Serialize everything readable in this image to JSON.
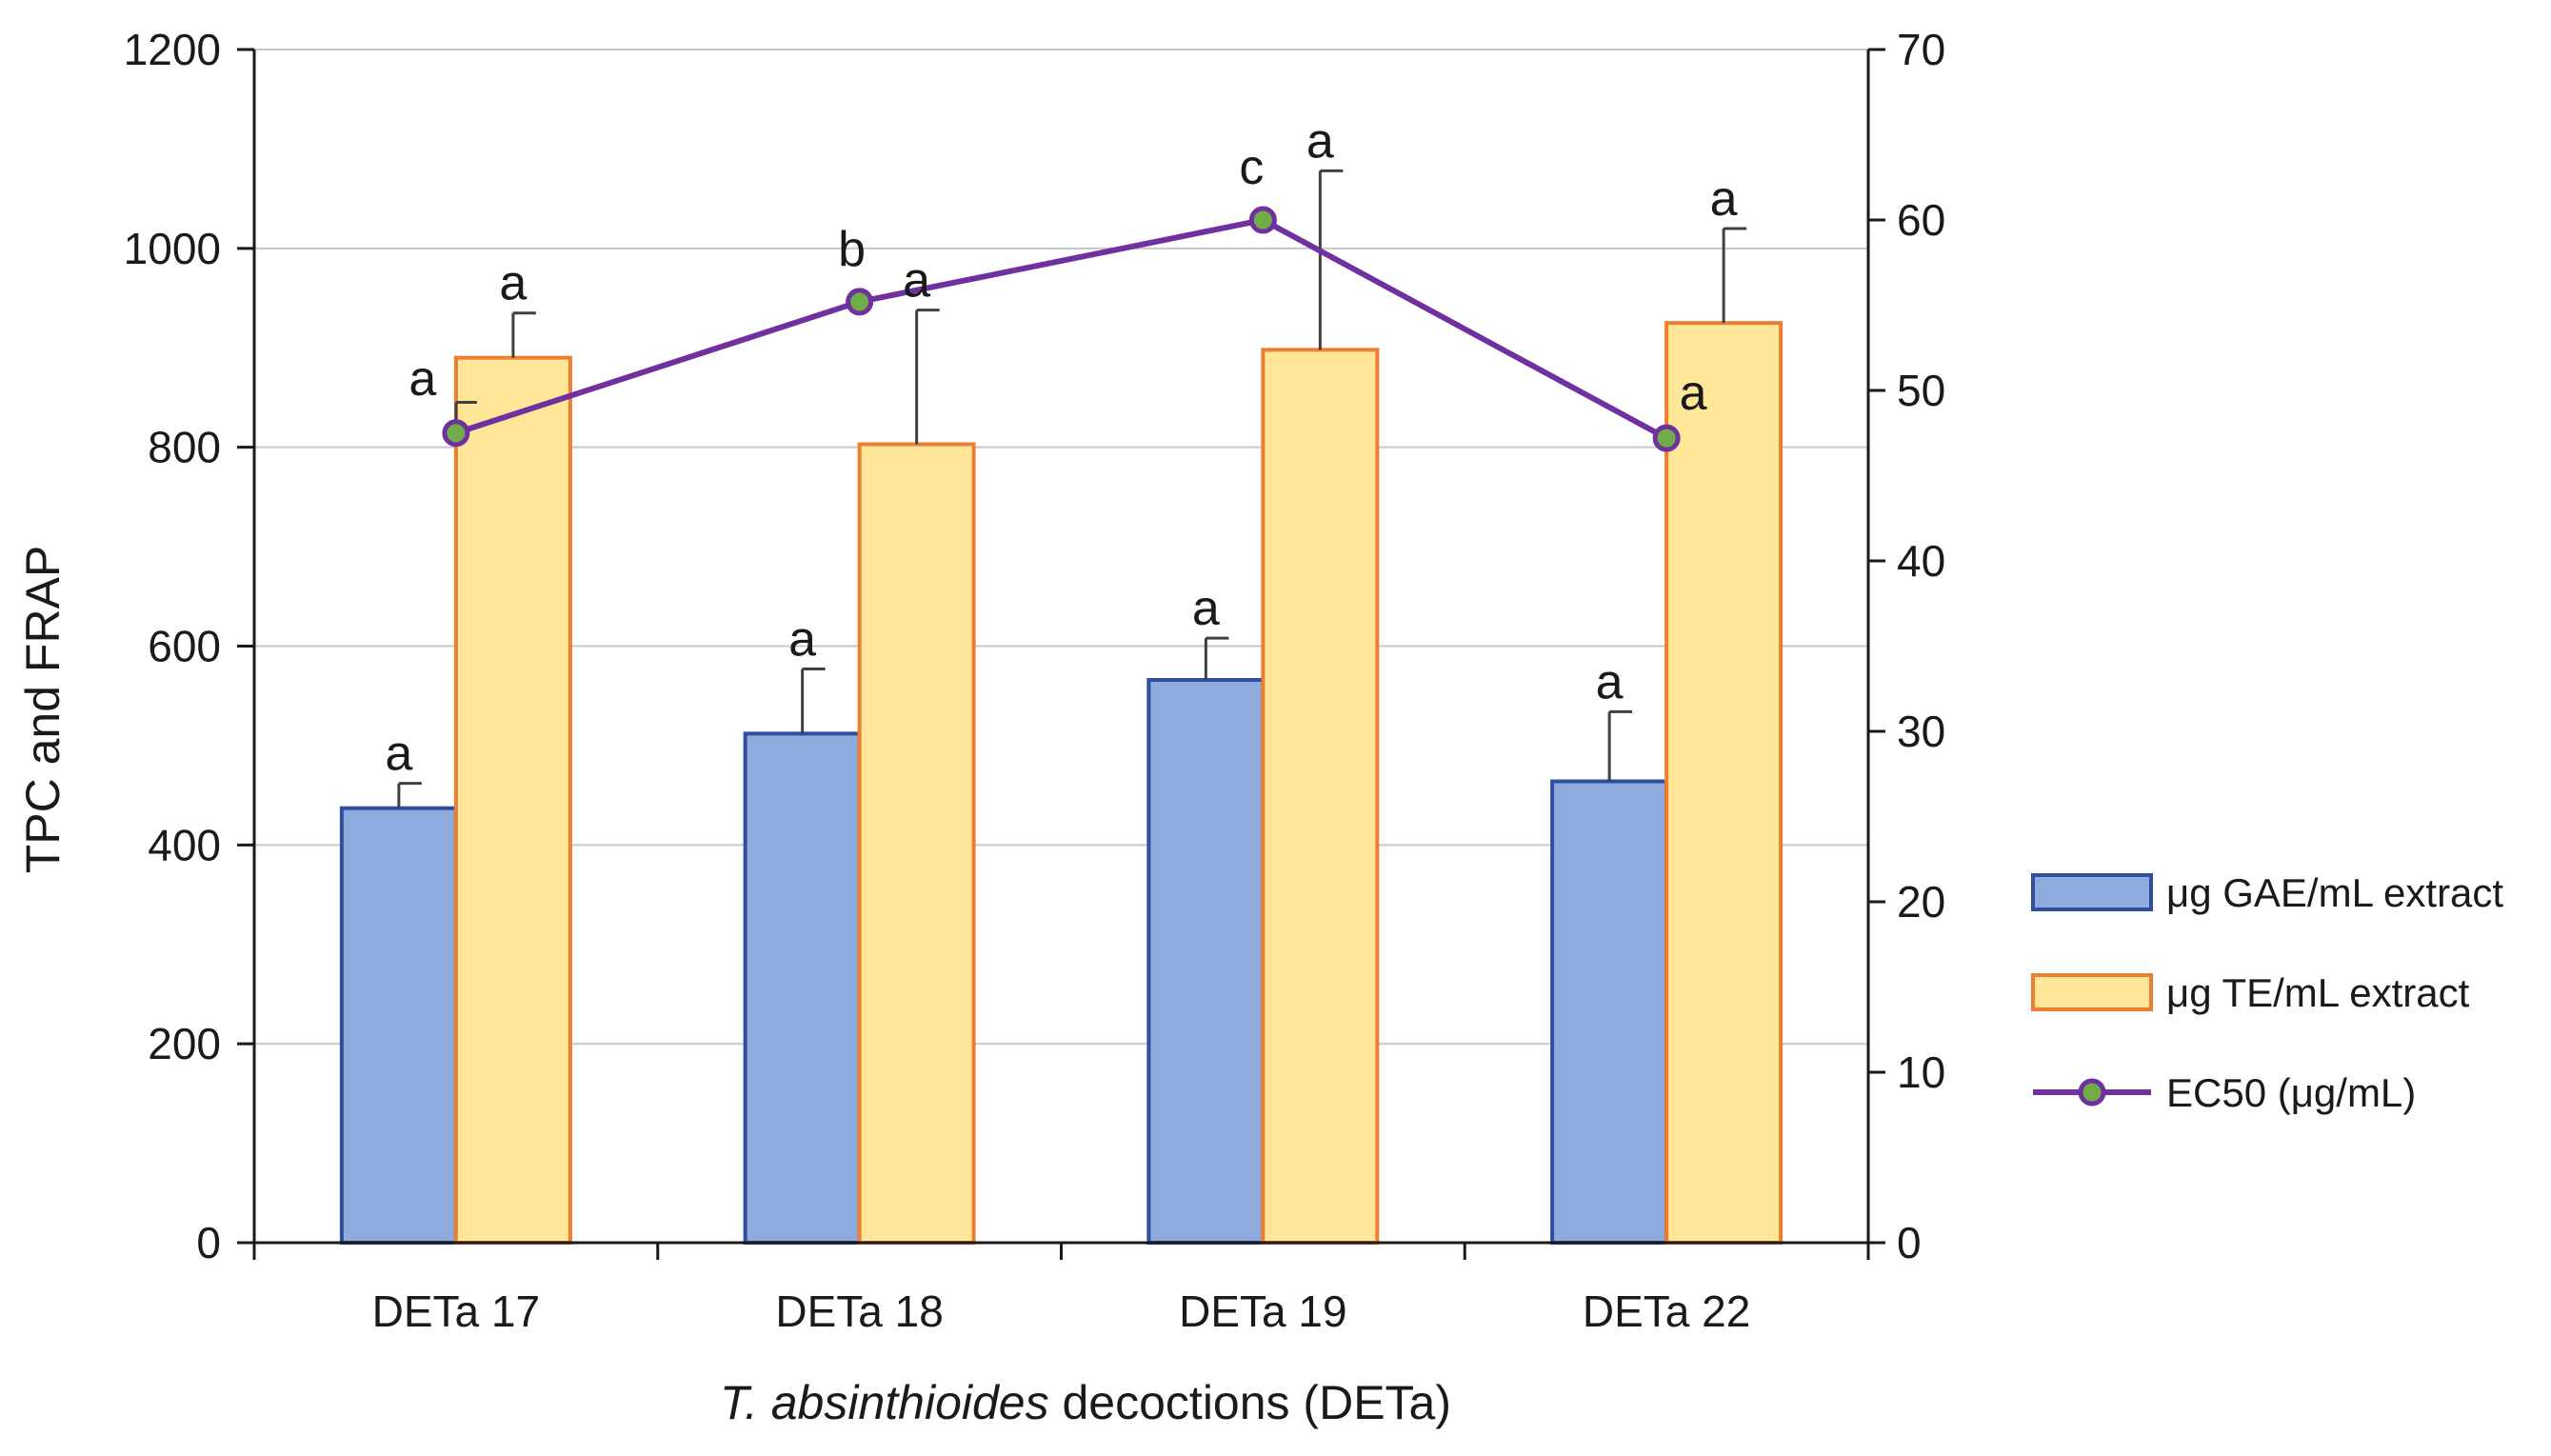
{
  "chart_data": {
    "type": "bar",
    "categories": [
      "DETa 17",
      "DETa 18",
      "DETa 19",
      "DETa 22"
    ],
    "xlabel_italic": "T. absinthioides",
    "xlabel_rest": " decoctions (DETa)",
    "ylabel": "TPC and FRAP",
    "ylim": [
      0,
      1200
    ],
    "y_ticks": [
      0,
      200,
      400,
      600,
      800,
      1000,
      1200
    ],
    "y2lim": [
      0,
      70
    ],
    "y2_ticks": [
      0,
      10,
      20,
      30,
      40,
      50,
      60,
      70
    ],
    "grid": true,
    "legend_position": "right",
    "series": [
      {
        "name": "μg GAE/mL extract",
        "kind": "bar",
        "axis": "left",
        "values": [
          437,
          512,
          566,
          464
        ],
        "errors": [
          25,
          65,
          42,
          70
        ],
        "sig_labels": [
          "a",
          "a",
          "a",
          "a"
        ],
        "fill": "#8faadc",
        "stroke": "#2f4ea0"
      },
      {
        "name": "μg TE/mL extract",
        "kind": "bar",
        "axis": "left",
        "values": [
          890,
          803,
          898,
          925
        ],
        "errors": [
          45,
          135,
          180,
          95
        ],
        "sig_labels": [
          "a",
          "a",
          "a",
          "a"
        ],
        "fill": "#ffe699",
        "stroke": "#ed7d31"
      },
      {
        "name": "EC50 (μg/mL)",
        "kind": "line",
        "axis": "right",
        "values": [
          47.5,
          55.2,
          60.0,
          47.2
        ],
        "errors": [
          1.8,
          0,
          0,
          0
        ],
        "sig_labels": [
          "a",
          "b",
          "c",
          "a"
        ],
        "stroke": "#7030a0",
        "marker_fill": "#70ad47"
      }
    ]
  }
}
